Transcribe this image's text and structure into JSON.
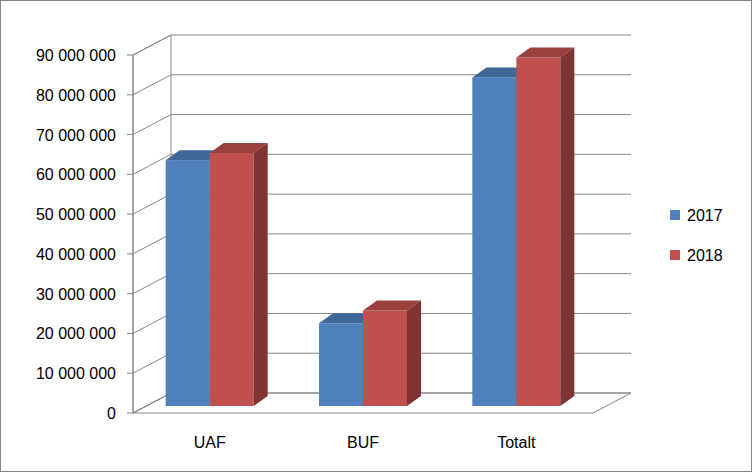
{
  "chart_data": {
    "type": "bar",
    "categories": [
      "UAF",
      "BUF",
      "Totalt"
    ],
    "series": [
      {
        "name": "2017",
        "color": "#4f81bd",
        "values": [
          61800000,
          20800000,
          82600000
        ]
      },
      {
        "name": "2018",
        "color": "#c0504d",
        "values": [
          63600000,
          24000000,
          87600000
        ]
      }
    ],
    "ylim": [
      0,
      90000000
    ],
    "yticks": [
      0,
      {
        "value": 10000000,
        "label": "10 000 000"
      },
      {
        "value": 20000000,
        "label": "20 000 000"
      },
      {
        "value": 30000000,
        "label": "30 000 000"
      },
      {
        "value": 40000000,
        "label": "40 000 000"
      },
      {
        "value": 50000000,
        "label": "50 000 000"
      },
      {
        "value": 60000000,
        "label": "60 000 000"
      },
      {
        "value": 70000000,
        "label": "70 000 000"
      },
      {
        "value": 80000000,
        "label": "80 000 000"
      },
      {
        "value": 90000000,
        "label": "90 000 000"
      }
    ],
    "grid": true,
    "legend": "right"
  }
}
